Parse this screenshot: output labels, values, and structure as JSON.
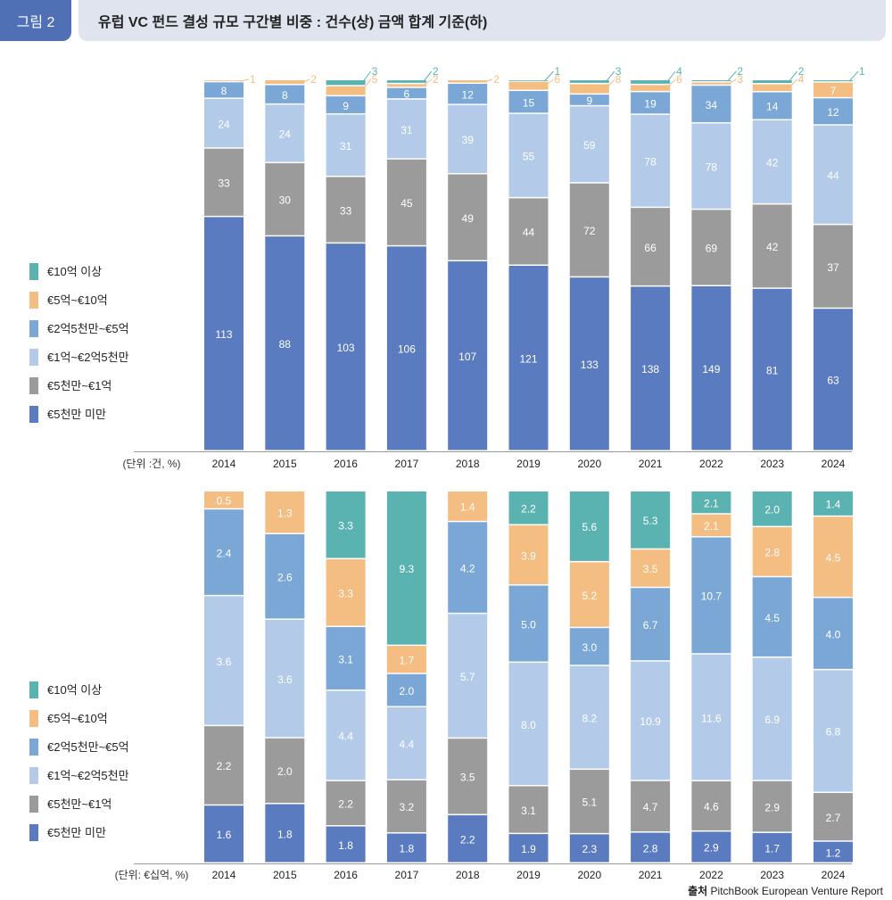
{
  "header": {
    "figure_label": "그림 2",
    "title": "유럽 VC 펀드 결성 규모 구간별 비중 : 건수(상) 금액 합계 기준(하)"
  },
  "source": {
    "prefix": "출처",
    "text": "PitchBook European Venture Report"
  },
  "colors": {
    "over_1b": "#5bb3b1",
    "500m_1b": "#f4bd82",
    "250m_500m": "#7aa7d6",
    "100m_250m": "#b3cbe8",
    "50m_100m": "#9b9b9b",
    "under_50m": "#5a7bbf"
  },
  "chart_data": [
    {
      "type": "bar",
      "stacked": true,
      "normalized": true,
      "unit_label": "(단위 :건, %)",
      "categories": [
        "2014",
        "2015",
        "2016",
        "2017",
        "2018",
        "2019",
        "2020",
        "2021",
        "2022",
        "2023",
        "2024"
      ],
      "legend_position": "left",
      "series": [
        {
          "name": "€5천만 미만",
          "color_key": "under_50m",
          "values": [
            113,
            88,
            103,
            106,
            107,
            121,
            133,
            138,
            149,
            81,
            63
          ]
        },
        {
          "name": "€5천만~€1억",
          "color_key": "50m_100m",
          "values": [
            33,
            30,
            33,
            45,
            49,
            44,
            72,
            66,
            69,
            42,
            37
          ]
        },
        {
          "name": "€1억~€2억5천만",
          "color_key": "100m_250m",
          "values": [
            24,
            24,
            31,
            31,
            39,
            55,
            59,
            78,
            78,
            42,
            44
          ]
        },
        {
          "name": "€2억5천만~€5억",
          "color_key": "250m_500m",
          "values": [
            8,
            8,
            9,
            6,
            12,
            15,
            9,
            19,
            34,
            14,
            12
          ]
        },
        {
          "name": "€5억~€10억",
          "color_key": "500m_1b",
          "values": [
            1,
            2,
            5,
            2,
            2,
            6,
            8,
            6,
            3,
            4,
            7
          ]
        },
        {
          "name": "€10억 이상",
          "color_key": "over_1b",
          "values": [
            0,
            0,
            3,
            2,
            0,
            1,
            3,
            4,
            2,
            2,
            1
          ]
        }
      ]
    },
    {
      "type": "bar",
      "stacked": true,
      "normalized": true,
      "unit_label": "(단위: €십억, %)",
      "categories": [
        "2014",
        "2015",
        "2016",
        "2017",
        "2018",
        "2019",
        "2020",
        "2021",
        "2022",
        "2023",
        "2024"
      ],
      "legend_position": "left",
      "series": [
        {
          "name": "€5천만 미만",
          "color_key": "under_50m",
          "values": [
            1.6,
            1.8,
            1.8,
            1.8,
            2.2,
            1.9,
            2.3,
            2.8,
            2.9,
            1.7,
            1.2
          ]
        },
        {
          "name": "€5천만~€1억",
          "color_key": "50m_100m",
          "values": [
            2.2,
            2.0,
            2.2,
            3.2,
            3.5,
            3.1,
            5.1,
            4.7,
            4.6,
            2.9,
            2.7
          ]
        },
        {
          "name": "€1억~€2억5천만",
          "color_key": "100m_250m",
          "values": [
            3.6,
            3.6,
            4.4,
            4.4,
            5.7,
            8.0,
            8.2,
            10.9,
            11.6,
            6.9,
            6.8
          ]
        },
        {
          "name": "€2억5천만~€5억",
          "color_key": "250m_500m",
          "values": [
            2.4,
            2.6,
            3.1,
            2.0,
            4.2,
            5.0,
            3.0,
            6.7,
            10.7,
            4.5,
            4.0
          ]
        },
        {
          "name": "€5억~€10억",
          "color_key": "500m_1b",
          "values": [
            0.5,
            1.3,
            3.3,
            1.7,
            1.4,
            3.9,
            5.2,
            3.5,
            2.1,
            2.8,
            4.5
          ]
        },
        {
          "name": "€10억 이상",
          "color_key": "over_1b",
          "values": [
            0,
            0,
            3.3,
            9.3,
            0,
            2.2,
            5.6,
            5.3,
            2.1,
            2.0,
            1.4
          ]
        }
      ]
    }
  ]
}
